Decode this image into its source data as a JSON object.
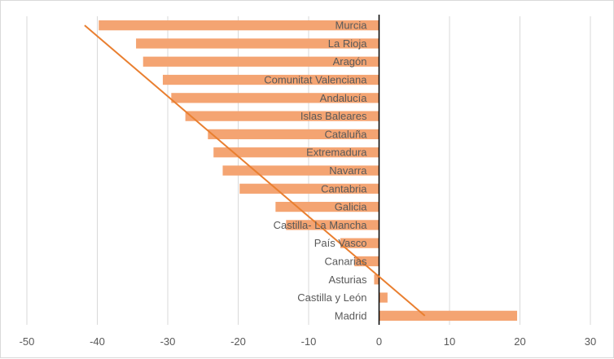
{
  "chart_data": {
    "type": "bar",
    "orientation": "horizontal",
    "title": "",
    "xlabel": "",
    "ylabel": "",
    "xlim": [
      -50,
      30
    ],
    "xticks": [
      -50,
      -40,
      -30,
      -20,
      -10,
      0,
      10,
      20,
      30
    ],
    "grid": "vertical",
    "legend": "none",
    "categories": [
      "Murcia",
      "La Rioja",
      "Aragón",
      "Comunitat Valenciana",
      "Andalucía",
      "Islas Baleares",
      "Cataluña",
      "Extremadura",
      "Navarra",
      "Cantabria",
      "Galicia",
      "Castilla- La Mancha",
      "País Vasco",
      "Canarias",
      "Asturias",
      "Castilla y León",
      "Madrid"
    ],
    "values": [
      -39.8,
      -34.5,
      -33.5,
      -30.7,
      -29.5,
      -27.5,
      -24.3,
      -23.5,
      -22.2,
      -19.8,
      -14.7,
      -13.2,
      -5.5,
      -3.5,
      -0.7,
      1.2,
      19.6
    ],
    "trendline": {
      "type": "linear",
      "x_start": -41.8,
      "x_end": 6.5
    },
    "colors": {
      "bar": "#f4a472",
      "trend": "#e97f30",
      "axis": "#000000",
      "grid": "#d9d9d9"
    }
  }
}
